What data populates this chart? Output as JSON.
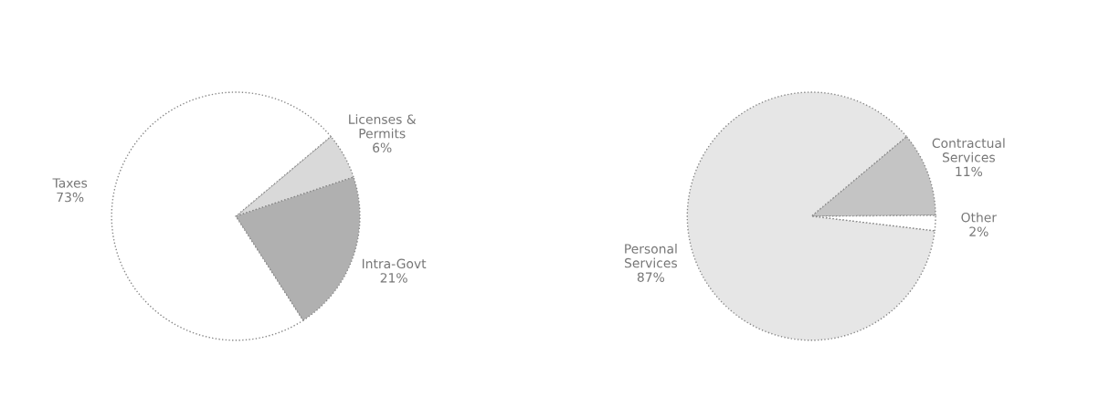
{
  "chart_data": [
    {
      "type": "pie",
      "categories": [
        "Licenses &\nPermits",
        "Intra-Govt",
        "Taxes"
      ],
      "values": [
        6,
        21,
        73
      ],
      "value_labels": [
        "6%",
        "21%",
        "73%"
      ],
      "colors": [
        "#d9d9d9",
        "#b0b0b0",
        "#ffffff"
      ]
    },
    {
      "type": "pie",
      "categories": [
        "Contractual\nServices",
        "Other",
        "Personal\nServices"
      ],
      "values": [
        11,
        2,
        87
      ],
      "value_labels": [
        "11%",
        "2%",
        "87%"
      ],
      "colors": [
        "#c4c4c4",
        "#ffffff",
        "#e6e6e6"
      ]
    }
  ]
}
